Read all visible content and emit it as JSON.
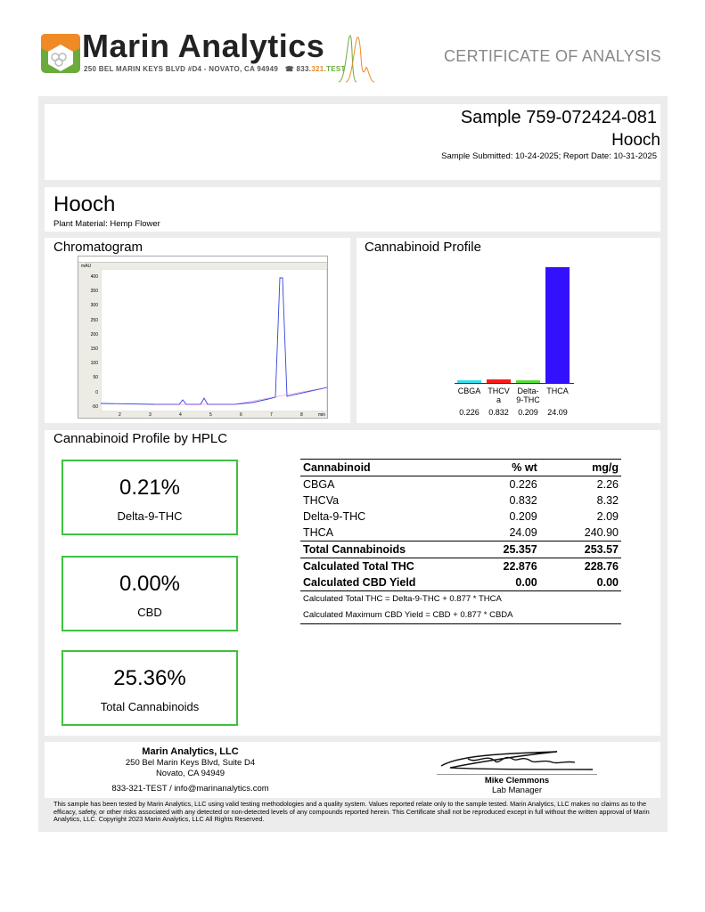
{
  "brand": {
    "name": "Marin Analytics",
    "address": "250 BEL MARIN KEYS BLVD #D4 - NOVATO, CA 94949",
    "phone_a": "833.",
    "phone_b": "321",
    "phone_c": ".TEST",
    "colors": {
      "orange": "#f08a24",
      "green": "#6aab3c"
    }
  },
  "doc_title": "CERTIFICATE OF ANALYSIS",
  "sample": {
    "id": "Sample 759-072424-081",
    "name": "Hooch",
    "dates": "Sample Submitted: 10-24-2025;  Report Date: 10-31-2025"
  },
  "product": {
    "name": "Hooch",
    "material": "Plant Material: Hemp Flower"
  },
  "chromatogram": {
    "title": "Chromatogram",
    "y_unit": "mAU",
    "x_unit": "min",
    "y_ticks": [
      "400",
      "350",
      "300",
      "250",
      "200",
      "150",
      "100",
      "50",
      "0",
      "-50"
    ],
    "x_ticks": [
      "2",
      "3",
      "4",
      "5",
      "6",
      "7",
      "8"
    ]
  },
  "profile_chart": {
    "title": "Cannabinoid Profile",
    "chart_data": {
      "type": "bar",
      "categories": [
        "CBGA",
        "THCVa",
        "Delta-9-THC",
        "THCA"
      ],
      "labels": [
        "CBGA",
        "THCV a",
        "Delta- 9-THC",
        "THCA"
      ],
      "values": [
        0.226,
        0.832,
        0.209,
        24.09
      ],
      "value_labels": [
        "0.226",
        "0.832",
        "0.209",
        "24.09"
      ],
      "colors": [
        "#33e0f0",
        "#ff1a1a",
        "#55dd33",
        "#3311ff"
      ]
    }
  },
  "hplc": {
    "title": "Cannabinoid Profile by HPLC",
    "summary": [
      {
        "value": "0.21%",
        "label": "Delta-9-THC"
      },
      {
        "value": "0.00%",
        "label": "CBD"
      },
      {
        "value": "25.36%",
        "label": "Total Cannabinoids"
      }
    ],
    "table": {
      "headers": [
        "Cannabinoid",
        "% wt",
        "mg/g"
      ],
      "rows": [
        [
          "CBGA",
          "0.226",
          "2.26"
        ],
        [
          "THCVa",
          "0.832",
          "8.32"
        ],
        [
          "Delta-9-THC",
          "0.209",
          "2.09"
        ],
        [
          "THCA",
          "24.09",
          "240.90"
        ]
      ],
      "total": [
        "Total Cannabinoids",
        "25.357",
        "253.57"
      ],
      "calc": [
        [
          "Calculated Total THC",
          "22.876",
          "228.76"
        ],
        [
          "Calculated CBD Yield",
          "0.00",
          "0.00"
        ]
      ],
      "notes": [
        "Calculated Total THC = Delta-9-THC + 0.877 * THCA",
        "Calculated Maximum CBD Yield = CBD + 0.877 * CBDA"
      ]
    }
  },
  "footer": {
    "company": "Marin Analytics, LLC",
    "line1": "250 Bel Marin Keys Blvd, Suite D4",
    "line2": "Novato, CA 94949",
    "contact": "833-321-TEST / info@marinanalytics.com",
    "signer": "Mike Clemmons",
    "signer_title": "Lab Manager",
    "disclaimer": "This sample has been tested by Marin Analytics, LLC using valid testing methodologies and a quality system.  Values reported relate only to the sample tested.  Marin Analytics, LLC makes no claims as to the efficacy, safety, or other risks associated with any detected or non-detected levels of any compounds reported herein.  This Certificate shall not be reproduced except in full without the written approval of Marin Analytics, LLC.     Copyright 2023 Marin Analytics, LLC All Rights Reserved."
  }
}
